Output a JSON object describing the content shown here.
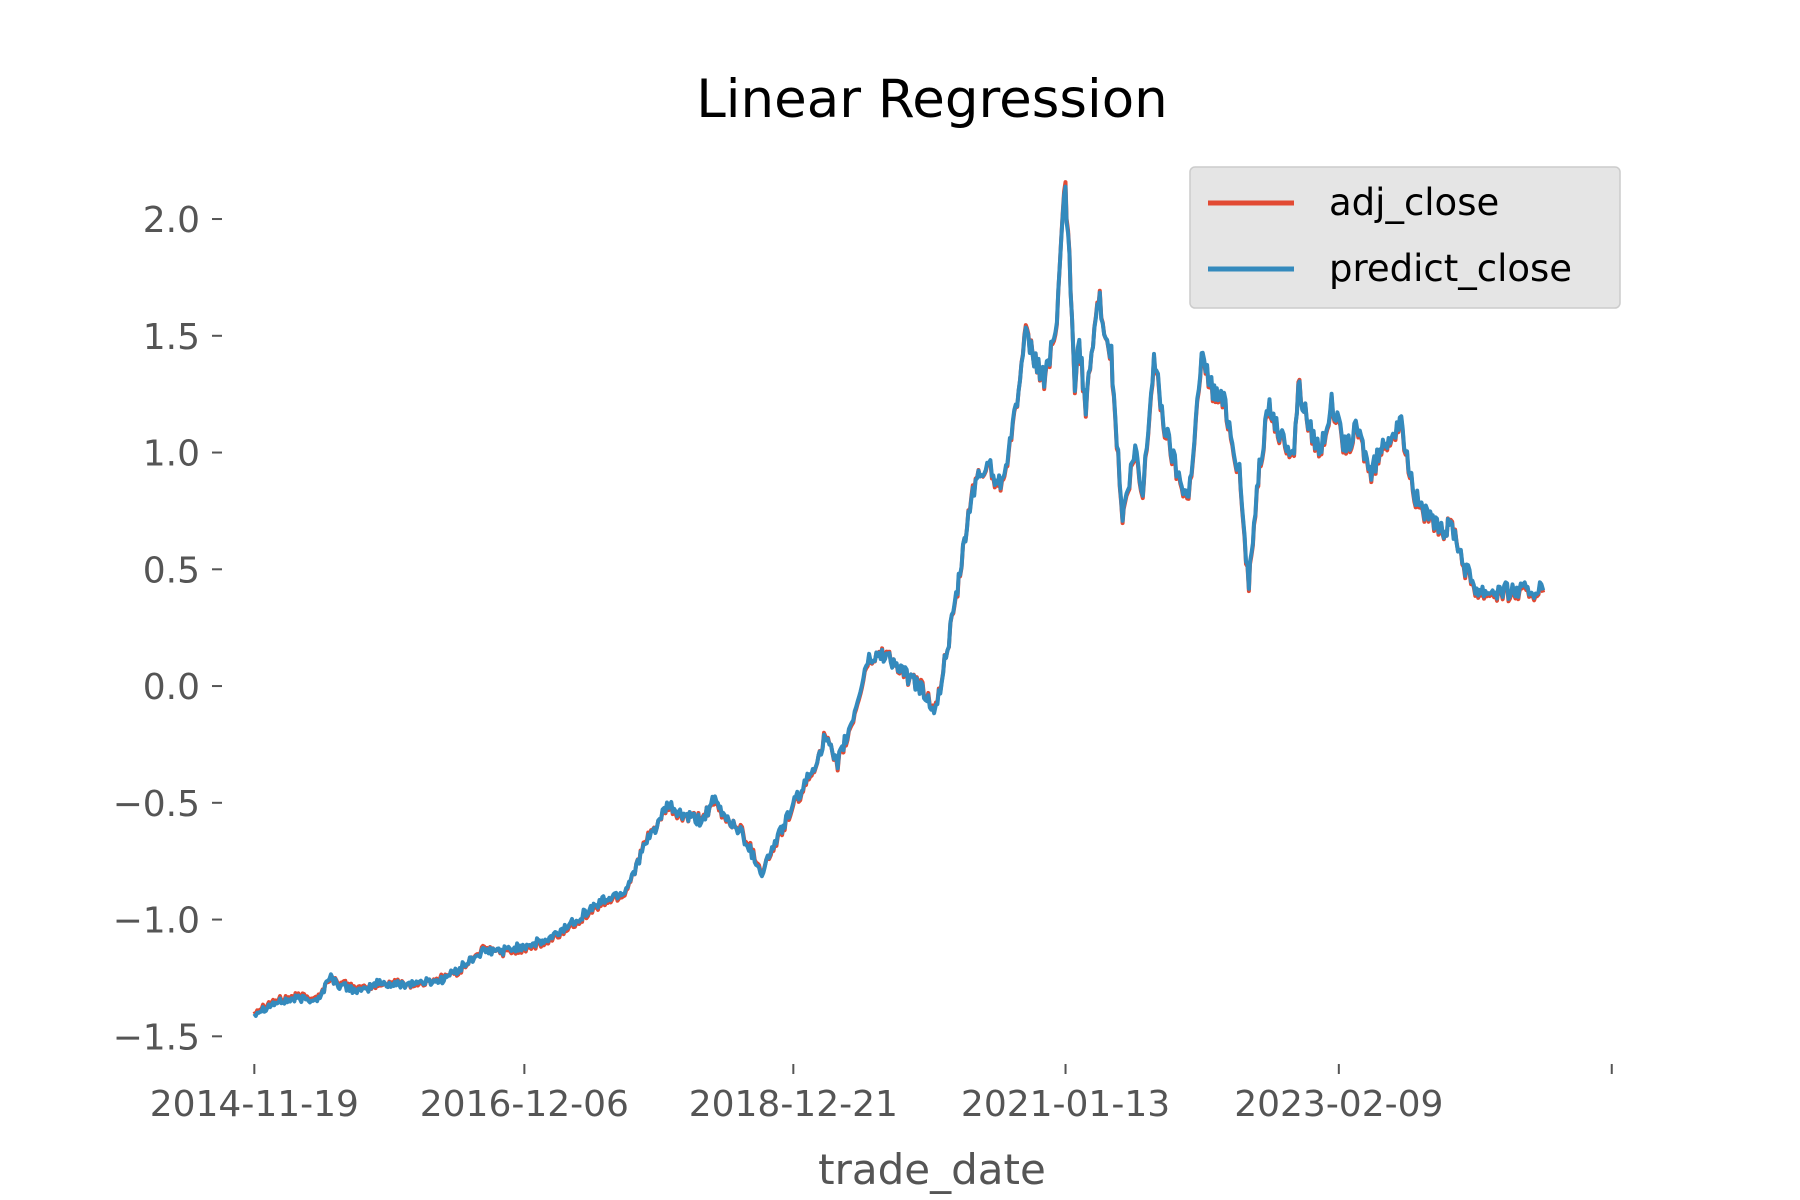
{
  "chart_data": {
    "type": "line",
    "title": "Linear Regression",
    "xlabel": "trade_date",
    "ylabel": "",
    "x_type": "date",
    "x_tick_labels": [
      "2014-11-19",
      "2016-12-06",
      "2018-12-21",
      "2021-01-13",
      "2023-02-09",
      ""
    ],
    "x_tick_dates": [
      "2014-11-19",
      "2016-12-06",
      "2018-12-21",
      "2021-01-13",
      "2023-02-09",
      "2025-03-06"
    ],
    "xlim": [
      "2014-10-02",
      "2025-04-20"
    ],
    "ylim": [
      -1.58,
      2.18
    ],
    "y_ticks": [
      -1.5,
      -1.0,
      -0.5,
      0.0,
      0.5,
      1.0,
      1.5,
      2.0
    ],
    "y_tick_labels": [
      "−1.5",
      "−1.0",
      "−0.5",
      "0.0",
      "0.5",
      "1.0",
      "1.5",
      "2.0"
    ],
    "grid": false,
    "legend_position": "top-right",
    "x": [
      "2014-11-19",
      "2015-01-10",
      "2015-03-10",
      "2015-05-20",
      "2015-06-15",
      "2015-07-10",
      "2015-09-15",
      "2015-10-25",
      "2015-12-10",
      "2016-02-15",
      "2016-04-20",
      "2016-06-10",
      "2016-08-10",
      "2016-10-20",
      "2016-12-10",
      "2017-02-10",
      "2017-03-25",
      "2017-05-15",
      "2017-07-10",
      "2017-09-10",
      "2017-11-10",
      "2018-01-10",
      "2018-02-10",
      "2018-04-10",
      "2018-05-15",
      "2018-06-10",
      "2018-08-01",
      "2018-09-25",
      "2018-10-20",
      "2018-12-21",
      "2019-02-10",
      "2019-03-20",
      "2019-04-20",
      "2019-06-01",
      "2019-07-15",
      "2019-09-01",
      "2019-10-20",
      "2019-12-10",
      "2020-01-20",
      "2020-03-20",
      "2020-05-01",
      "2020-06-15",
      "2020-07-10",
      "2020-07-25",
      "2020-08-20",
      "2020-09-25",
      "2020-11-15",
      "2020-12-20",
      "2021-01-13",
      "2021-02-08",
      "2021-02-20",
      "2021-03-10",
      "2021-04-15",
      "2021-05-20",
      "2021-06-20",
      "2021-07-25",
      "2021-08-15",
      "2021-09-15",
      "2021-10-15",
      "2021-11-20",
      "2021-12-20",
      "2022-01-25",
      "2022-03-01",
      "2022-04-01",
      "2022-05-10",
      "2022-06-05",
      "2022-07-01",
      "2022-08-01",
      "2022-09-01",
      "2022-10-08",
      "2022-10-20",
      "2022-11-20",
      "2022-12-20",
      "2023-01-20",
      "2023-03-01",
      "2023-04-01",
      "2023-05-10",
      "2023-06-20",
      "2023-08-01",
      "2023-09-10",
      "2023-10-20",
      "2023-11-20",
      "2023-12-20",
      "2024-01-25",
      "2024-03-01",
      "2024-04-10",
      "2024-05-05",
      "2024-06-01",
      "2024-06-20",
      "2024-07-05",
      "2024-07-20",
      "2024-08-15",
      "2024-08-28"
    ],
    "series": [
      {
        "name": "adj_close",
        "color": "#E24A33",
        "values": [
          -1.39,
          -1.35,
          -1.33,
          -1.33,
          -1.25,
          -1.27,
          -1.3,
          -1.28,
          -1.27,
          -1.28,
          -1.25,
          -1.22,
          -1.13,
          -1.14,
          -1.12,
          -1.1,
          -1.05,
          -0.99,
          -0.93,
          -0.89,
          -0.66,
          -0.52,
          -0.56,
          -0.57,
          -0.5,
          -0.56,
          -0.62,
          -0.79,
          -0.72,
          -0.52,
          -0.38,
          -0.21,
          -0.35,
          -0.17,
          0.1,
          0.15,
          0.05,
          0.0,
          -0.1,
          0.4,
          0.85,
          0.95,
          0.85,
          0.9,
          1.1,
          1.5,
          1.3,
          1.55,
          2.18,
          1.3,
          1.45,
          1.2,
          1.68,
          1.4,
          0.7,
          1.0,
          0.8,
          1.4,
          1.1,
          0.9,
          0.8,
          1.4,
          1.25,
          1.2,
          0.9,
          0.42,
          0.9,
          1.2,
          1.05,
          1.0,
          1.3,
          1.1,
          1.0,
          1.2,
          1.0,
          1.1,
          0.9,
          1.05,
          1.1,
          0.8,
          0.7,
          0.65,
          0.7,
          0.5,
          0.4,
          0.4,
          0.4,
          0.4,
          0.4,
          0.4,
          0.4,
          0.4,
          0.4
        ]
      },
      {
        "name": "predict_close",
        "color": "#348ABD",
        "values": [
          -1.4,
          -1.36,
          -1.34,
          -1.34,
          -1.24,
          -1.28,
          -1.31,
          -1.27,
          -1.28,
          -1.27,
          -1.26,
          -1.21,
          -1.14,
          -1.13,
          -1.11,
          -1.09,
          -1.04,
          -0.98,
          -0.92,
          -0.88,
          -0.67,
          -0.51,
          -0.55,
          -0.58,
          -0.49,
          -0.55,
          -0.63,
          -0.8,
          -0.71,
          -0.51,
          -0.37,
          -0.22,
          -0.34,
          -0.16,
          0.11,
          0.14,
          0.06,
          -0.01,
          -0.11,
          0.41,
          0.84,
          0.96,
          0.86,
          0.91,
          1.11,
          1.49,
          1.31,
          1.56,
          2.16,
          1.31,
          1.46,
          1.21,
          1.67,
          1.41,
          0.71,
          1.01,
          0.81,
          1.41,
          1.11,
          0.91,
          0.81,
          1.41,
          1.26,
          1.21,
          0.91,
          0.43,
          0.91,
          1.21,
          1.06,
          1.01,
          1.29,
          1.11,
          1.01,
          1.21,
          1.01,
          1.11,
          0.91,
          1.06,
          1.11,
          0.81,
          0.71,
          0.66,
          0.69,
          0.51,
          0.41,
          0.41,
          0.41,
          0.41,
          0.41,
          0.41,
          0.41,
          0.41,
          0.41
        ]
      }
    ]
  }
}
